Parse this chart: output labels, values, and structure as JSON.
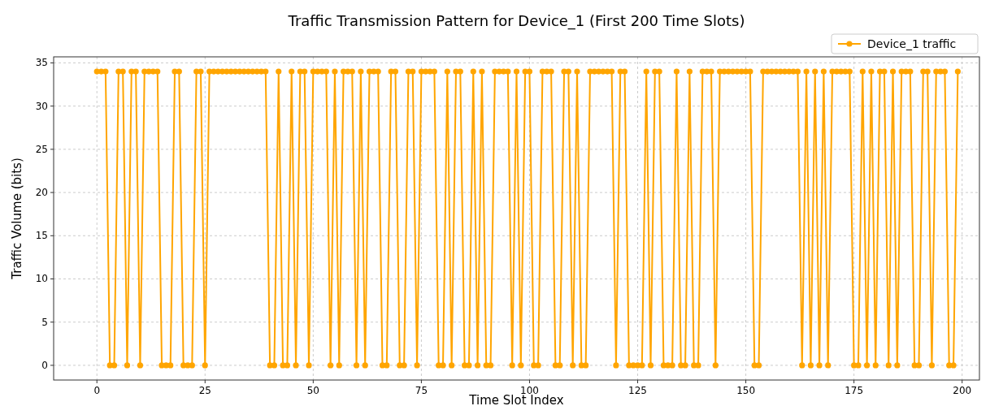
{
  "chart_data": {
    "type": "line",
    "title": "Traffic Transmission Pattern for Device_1 (First 200 Time Slots)",
    "xlabel": "Time Slot Index",
    "ylabel": "Traffic Volume (bits)",
    "x": [
      0,
      1,
      2,
      3,
      4,
      5,
      6,
      7,
      8,
      9,
      10,
      11,
      12,
      13,
      14,
      15,
      16,
      17,
      18,
      19,
      20,
      21,
      22,
      23,
      24,
      25,
      26,
      27,
      28,
      29,
      30,
      31,
      32,
      33,
      34,
      35,
      36,
      37,
      38,
      39,
      40,
      41,
      42,
      43,
      44,
      45,
      46,
      47,
      48,
      49,
      50,
      51,
      52,
      53,
      54,
      55,
      56,
      57,
      58,
      59,
      60,
      61,
      62,
      63,
      64,
      65,
      66,
      67,
      68,
      69,
      70,
      71,
      72,
      73,
      74,
      75,
      76,
      77,
      78,
      79,
      80,
      81,
      82,
      83,
      84,
      85,
      86,
      87,
      88,
      89,
      90,
      91,
      92,
      93,
      94,
      95,
      96,
      97,
      98,
      99,
      100,
      101,
      102,
      103,
      104,
      105,
      106,
      107,
      108,
      109,
      110,
      111,
      112,
      113,
      114,
      115,
      116,
      117,
      118,
      119,
      120,
      121,
      122,
      123,
      124,
      125,
      126,
      127,
      128,
      129,
      130,
      131,
      132,
      133,
      134,
      135,
      136,
      137,
      138,
      139,
      140,
      141,
      142,
      143,
      144,
      145,
      146,
      147,
      148,
      149,
      150,
      151,
      152,
      153,
      154,
      155,
      156,
      157,
      158,
      159,
      160,
      161,
      162,
      163,
      164,
      165,
      166,
      167,
      168,
      169,
      170,
      171,
      172,
      173,
      174,
      175,
      176,
      177,
      178,
      179,
      180,
      181,
      182,
      183,
      184,
      185,
      186,
      187,
      188,
      189,
      190,
      191,
      192,
      193,
      194,
      195,
      196,
      197,
      198,
      199
    ],
    "series": [
      {
        "name": "Device_1 traffic",
        "color": "#ffa500",
        "values": [
          34,
          34,
          34,
          0,
          0,
          34,
          34,
          0,
          34,
          34,
          0,
          34,
          34,
          34,
          34,
          0,
          0,
          0,
          34,
          34,
          0,
          0,
          0,
          34,
          34,
          0,
          34,
          34,
          34,
          34,
          34,
          34,
          34,
          34,
          34,
          34,
          34,
          34,
          34,
          34,
          0,
          0,
          34,
          0,
          0,
          34,
          0,
          34,
          34,
          0,
          34,
          34,
          34,
          34,
          0,
          34,
          0,
          34,
          34,
          34,
          0,
          34,
          0,
          34,
          34,
          34,
          0,
          0,
          34,
          34,
          0,
          0,
          34,
          34,
          0,
          34,
          34,
          34,
          34,
          0,
          0,
          34,
          0,
          34,
          34,
          0,
          0,
          34,
          0,
          34,
          0,
          0,
          34,
          34,
          34,
          34,
          0,
          34,
          0,
          34,
          34,
          0,
          0,
          34,
          34,
          34,
          0,
          0,
          34,
          34,
          0,
          34,
          0,
          0,
          34,
          34,
          34,
          34,
          34,
          34,
          0,
          34,
          34,
          0,
          0,
          0,
          0,
          34,
          0,
          34,
          34,
          0,
          0,
          0,
          34,
          0,
          0,
          34,
          0,
          0,
          34,
          34,
          34,
          0,
          34,
          34,
          34,
          34,
          34,
          34,
          34,
          34,
          0,
          0,
          34,
          34,
          34,
          34,
          34,
          34,
          34,
          34,
          34,
          0,
          34,
          0,
          34,
          0,
          34,
          0,
          34,
          34,
          34,
          34,
          34,
          0,
          0,
          34,
          0,
          34,
          0,
          34,
          34,
          0,
          34,
          0,
          34,
          34,
          34,
          0,
          0,
          34,
          34,
          0,
          34,
          34,
          34,
          0,
          0,
          34
        ]
      }
    ],
    "xlim": [
      -10,
      204
    ],
    "ylim": [
      -1.7,
      35.7
    ],
    "xticks": [
      0,
      25,
      50,
      75,
      100,
      125,
      150,
      175,
      200
    ],
    "yticks": [
      0,
      5,
      10,
      15,
      20,
      25,
      30,
      35
    ],
    "grid": true,
    "legend": "top right",
    "marker": "circle",
    "line_style": "solid"
  }
}
